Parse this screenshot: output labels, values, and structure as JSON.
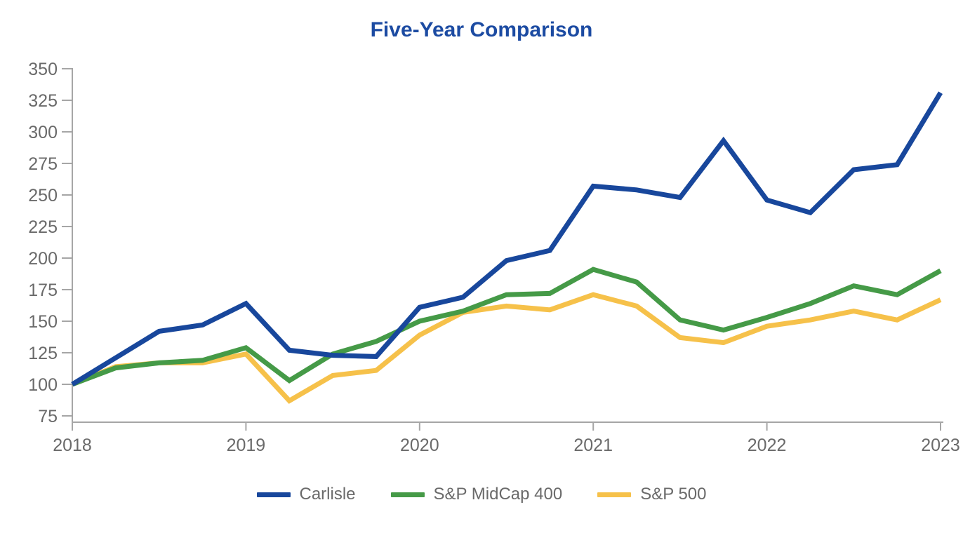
{
  "chart_data": {
    "type": "line",
    "title": "Five-Year Comparison",
    "title_color": "#1c4ba2",
    "x_axis": {
      "tick_labels": [
        "2018",
        "2019",
        "2020",
        "2021",
        "2022",
        "2023"
      ],
      "points_per_year": 4,
      "note": "quarterly data points indexed to 100 at 2018"
    },
    "y_axis": {
      "ticks": [
        75,
        100,
        125,
        150,
        175,
        200,
        225,
        250,
        275,
        300,
        325,
        350
      ],
      "ylim": [
        75,
        350
      ]
    },
    "grid": "off",
    "legend_position": "bottom",
    "axis_color": "#a6a6a6",
    "tick_label_color": "#6a6a6a",
    "series": [
      {
        "name": "Carlisle",
        "color": "#18479c",
        "values": [
          100,
          121,
          142,
          147,
          164,
          127,
          123,
          122,
          161,
          169,
          198,
          206,
          257,
          254,
          248,
          293,
          246,
          236,
          270,
          274,
          331
        ]
      },
      {
        "name": "S&P MidCap 400",
        "color": "#459a47",
        "values": [
          100,
          113,
          117,
          119,
          129,
          103,
          124,
          134,
          150,
          158,
          171,
          172,
          191,
          181,
          151,
          143,
          153,
          164,
          178,
          171,
          190
        ]
      },
      {
        "name": "S&P 500",
        "color": "#f6c14a",
        "values": [
          100,
          114,
          117,
          117,
          124,
          87,
          107,
          111,
          139,
          157,
          162,
          159,
          171,
          162,
          137,
          133,
          146,
          151,
          158,
          151,
          167
        ]
      }
    ]
  }
}
